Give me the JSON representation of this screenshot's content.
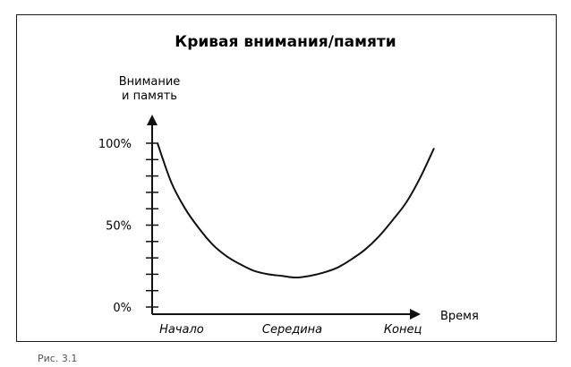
{
  "chart_data": {
    "type": "line",
    "title": "Кривая внимания/памяти",
    "ylabel_line1": "Внимание",
    "ylabel_line2": "и память",
    "xlabel": "Время",
    "x_ticks": [
      "Начало",
      "Середина",
      "Конец"
    ],
    "y_ticks": [
      "0%",
      "50%",
      "100%"
    ],
    "ylim": [
      0,
      100
    ],
    "xlim": [
      0,
      1
    ],
    "minor_y_step": 10,
    "series": [
      {
        "x": [
          0,
          0.05,
          0.1,
          0.15,
          0.2,
          0.25,
          0.3,
          0.35,
          0.4,
          0.45,
          0.5,
          0.55,
          0.6,
          0.65,
          0.7,
          0.75,
          0.8,
          0.85,
          0.9,
          0.95,
          1
        ],
        "y": [
          100,
          76,
          60,
          48,
          38,
          31,
          26,
          22,
          20,
          19,
          18,
          19,
          21,
          24,
          29,
          35,
          43,
          53,
          64,
          79,
          97
        ]
      }
    ],
    "colors": {
      "line": "#111111",
      "axis": "#111111",
      "frame": "#1a1a1a"
    }
  },
  "caption": "Рис. 3.1"
}
